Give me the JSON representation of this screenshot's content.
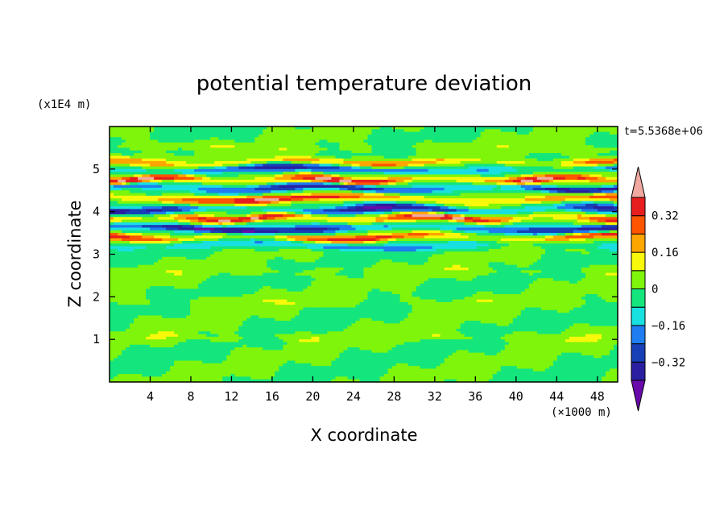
{
  "chart_data": {
    "type": "heatmap",
    "title": "potential temperature deviation",
    "xlabel": "X coordinate",
    "ylabel": "Z coordinate",
    "x_unit": "(×1000 m)",
    "y_unit": "(x1E4 m)",
    "time_label": "t=5.5368e+06",
    "xlim": [
      0,
      50
    ],
    "ylim": [
      0,
      6
    ],
    "x_ticks": [
      4,
      8,
      12,
      16,
      20,
      24,
      28,
      32,
      36,
      40,
      44,
      48
    ],
    "x_tick_labels": [
      "4",
      "8",
      "12",
      "16",
      "20",
      "24",
      "28",
      "32",
      "36",
      "40",
      "44",
      "48"
    ],
    "y_ticks": [
      1,
      2,
      3,
      4,
      5
    ],
    "y_tick_labels": [
      "1",
      "2",
      "3",
      "4",
      "5"
    ],
    "colorbar": {
      "levels": [
        -0.4,
        -0.32,
        -0.24,
        -0.16,
        -0.08,
        0,
        0.08,
        0.16,
        0.24,
        0.32,
        0.4
      ],
      "tick_values": [
        0.32,
        0.16,
        0,
        -0.16,
        -0.32
      ],
      "tick_labels": [
        "0.32",
        "0.16",
        "0",
        "−0.16",
        "−0.32"
      ],
      "colors": [
        "#6a0aab",
        "#2a1fa0",
        "#1740b8",
        "#1e7df0",
        "#19e0e0",
        "#14e67d",
        "#7ef50a",
        "#f8f80a",
        "#ffa500",
        "#ff5500",
        "#e81e1e",
        "#f0a8a0"
      ],
      "extend": "both"
    },
    "bands": [
      {
        "z": 5.5,
        "amp": 0.06,
        "wave": 2
      },
      {
        "z": 5.15,
        "amp": 0.3,
        "wave": 3
      },
      {
        "z": 5.0,
        "amp": -0.36,
        "wave": 2
      },
      {
        "z": 4.75,
        "amp": 0.42,
        "wave": 4
      },
      {
        "z": 4.55,
        "amp": -0.42,
        "wave": 3
      },
      {
        "z": 4.3,
        "amp": 0.38,
        "wave": 2
      },
      {
        "z": 4.05,
        "amp": -0.4,
        "wave": 3
      },
      {
        "z": 3.85,
        "amp": 0.44,
        "wave": 4
      },
      {
        "z": 3.6,
        "amp": -0.44,
        "wave": 2
      },
      {
        "z": 3.4,
        "amp": 0.36,
        "wave": 3
      },
      {
        "z": 3.2,
        "amp": -0.22,
        "wave": 2
      },
      {
        "z": 2.6,
        "amp": 0.05,
        "wave": 5
      },
      {
        "z": 1.9,
        "amp": 0.06,
        "wave": 4
      },
      {
        "z": 1.05,
        "amp": 0.07,
        "wave": 6
      }
    ]
  }
}
